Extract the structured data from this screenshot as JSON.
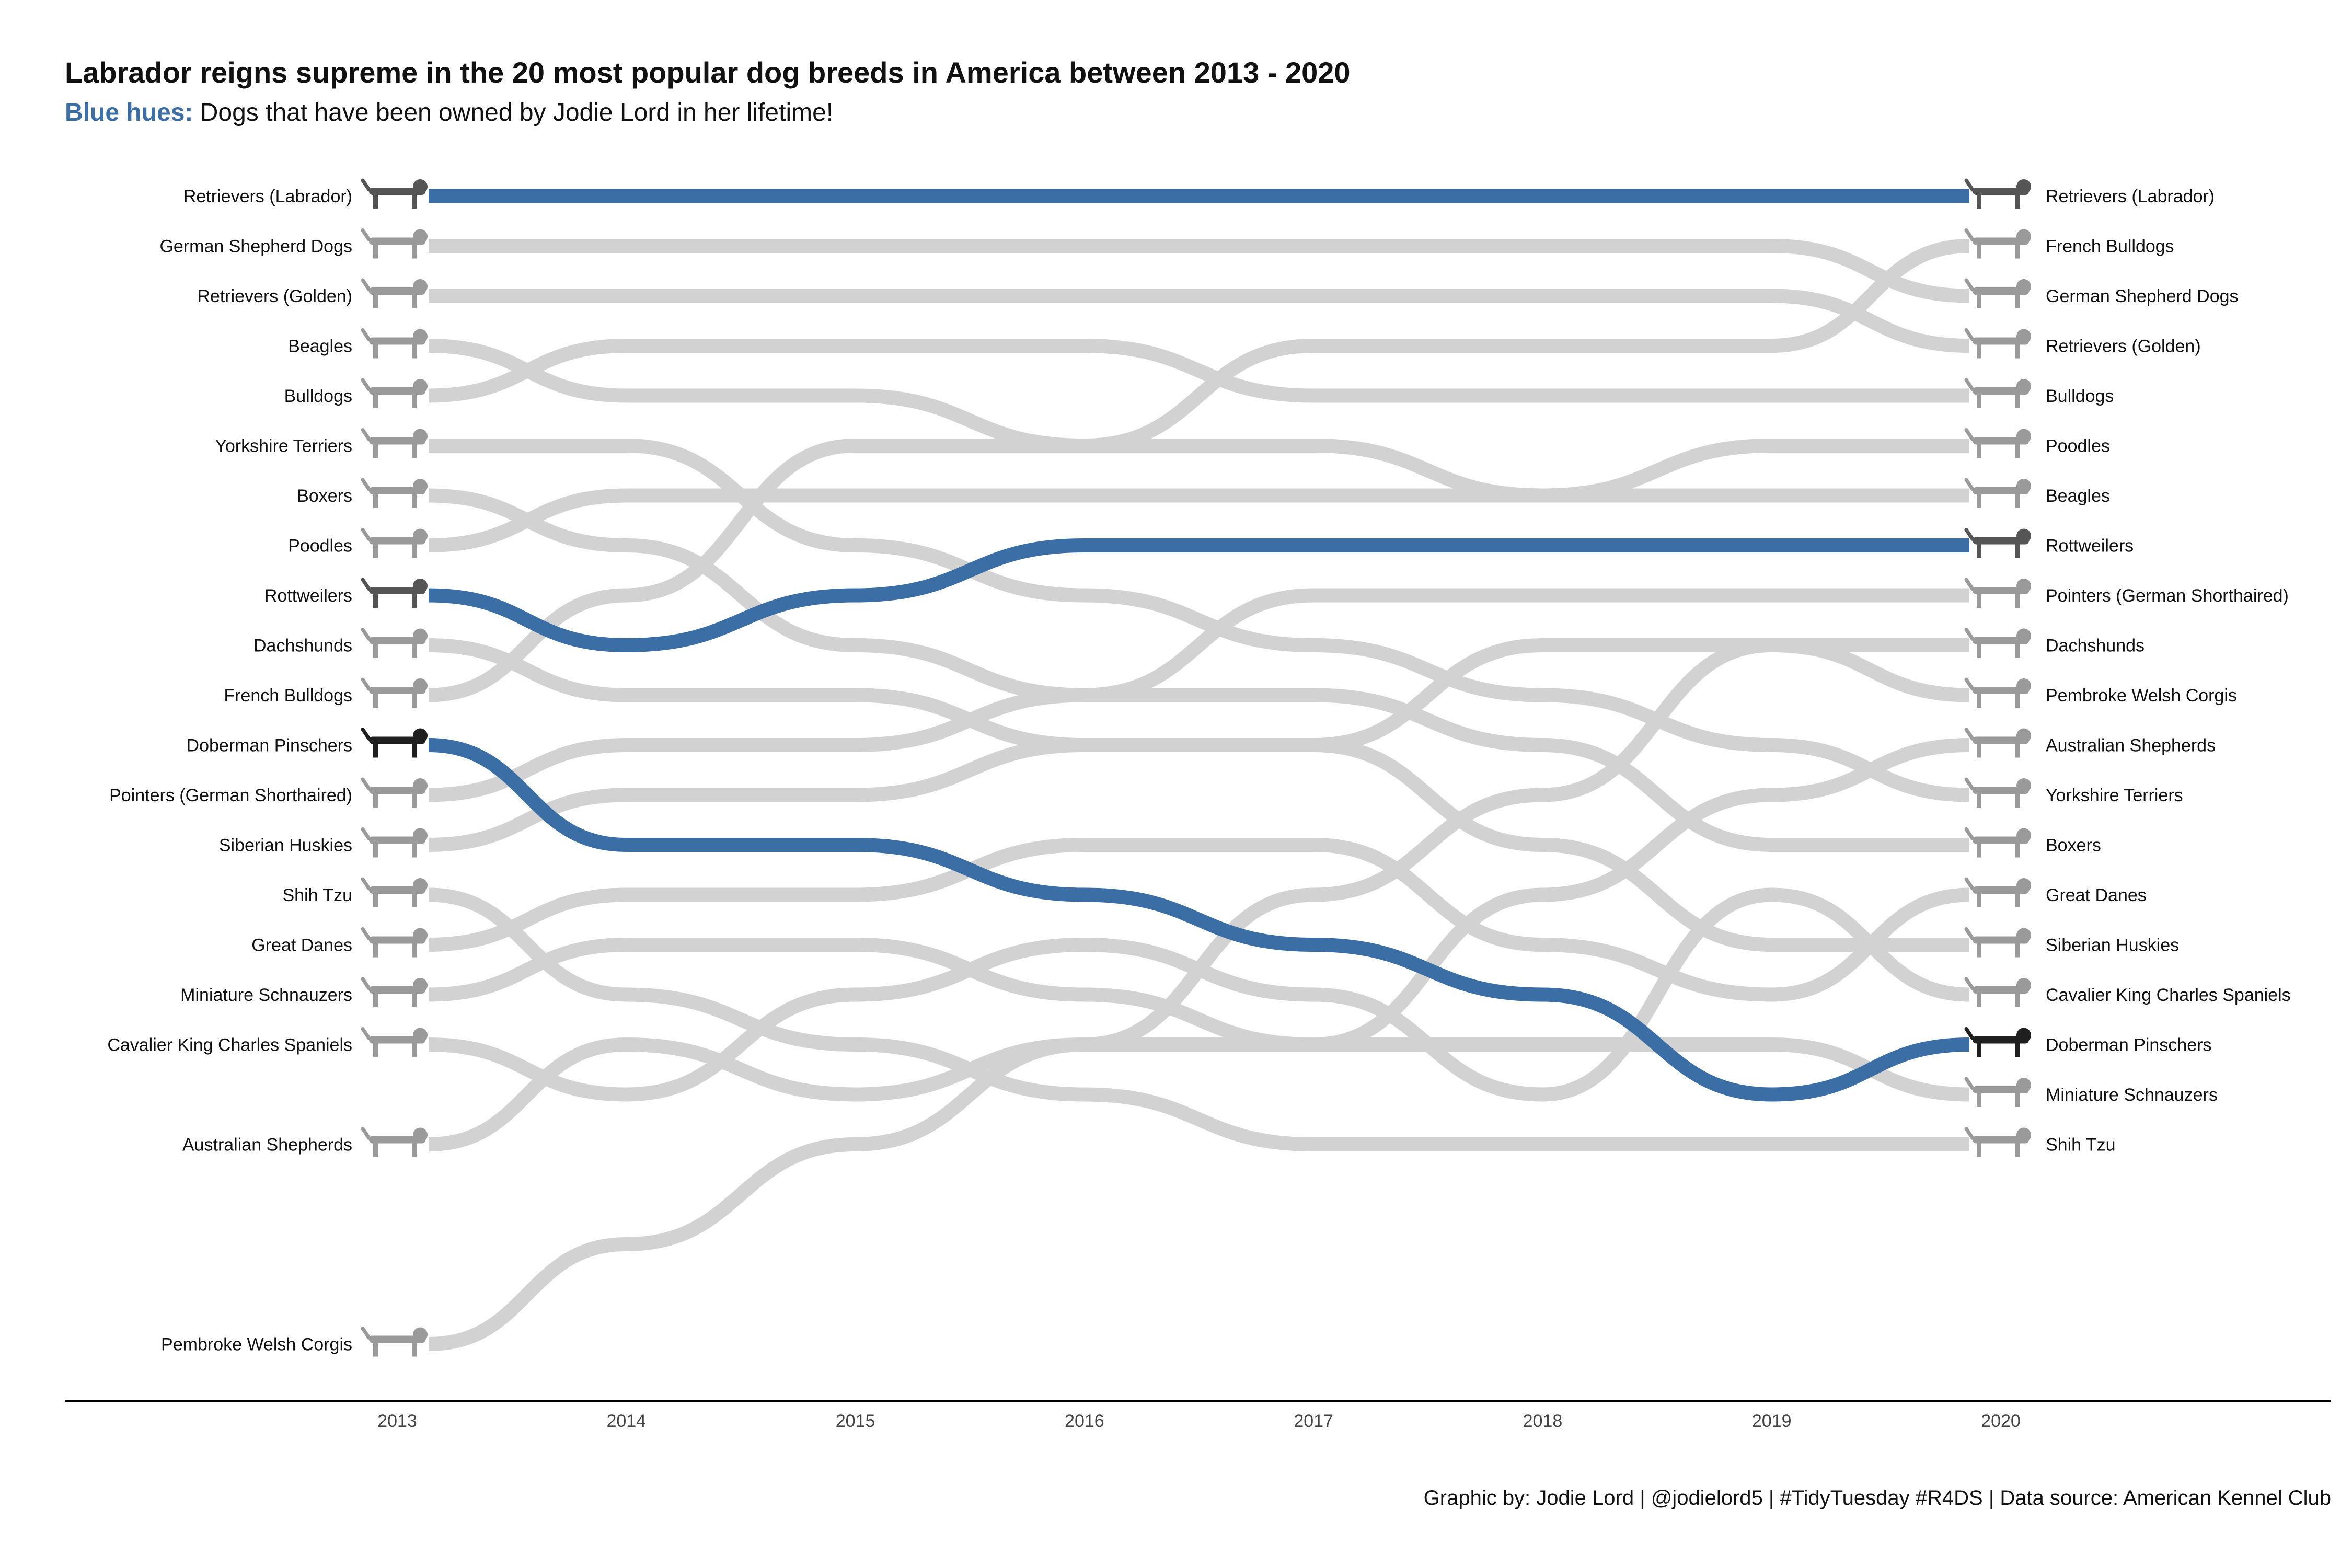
{
  "header": {
    "title": "Labrador reigns supreme in the 20 most popular dog breeds in America between 2013 - 2020",
    "subtitle_highlight": "Blue hues:",
    "subtitle_rest": " Dogs that have been owned by Jodie Lord in her lifetime!"
  },
  "caption": "Graphic by: Jodie Lord | @jodielord5 | #TidyTuesday #R4DS | Data source: American Kennel Club",
  "colors": {
    "highlight": "#3a6ea5",
    "other": "#d2d2d2",
    "axis": "#000000"
  },
  "chart_data": {
    "type": "line",
    "subtype": "bump chart (rank over time, rank 1 at top)",
    "title": "Labrador reigns supreme in the 20 most popular dog breeds in America between 2013 - 2020",
    "x": [
      2013,
      2014,
      2015,
      2016,
      2017,
      2018,
      2019,
      2020
    ],
    "y_reversed": true,
    "ylim": [
      1,
      24
    ],
    "grid": false,
    "legend": "none",
    "icons": "grayscale dog illustration beside each breed label at 2013 and 2020",
    "series": [
      {
        "name": "Retrievers (Labrador)",
        "highlight": true,
        "values": [
          1,
          1,
          1,
          1,
          1,
          1,
          1,
          1
        ]
      },
      {
        "name": "German Shepherd Dogs",
        "highlight": false,
        "values": [
          2,
          2,
          2,
          2,
          2,
          2,
          2,
          3
        ]
      },
      {
        "name": "Retrievers (Golden)",
        "highlight": false,
        "values": [
          3,
          3,
          3,
          3,
          3,
          3,
          3,
          4
        ]
      },
      {
        "name": "Beagles",
        "highlight": false,
        "values": [
          4,
          5,
          5,
          6,
          6,
          7,
          7,
          7
        ]
      },
      {
        "name": "Bulldogs",
        "highlight": false,
        "values": [
          5,
          4,
          4,
          4,
          5,
          5,
          5,
          5
        ]
      },
      {
        "name": "Yorkshire Terriers",
        "highlight": false,
        "values": [
          6,
          6,
          8,
          9,
          10,
          11,
          12,
          13
        ]
      },
      {
        "name": "Boxers",
        "highlight": false,
        "values": [
          7,
          8,
          10,
          11,
          11,
          12,
          14,
          14
        ]
      },
      {
        "name": "Poodles",
        "highlight": false,
        "values": [
          8,
          7,
          7,
          7,
          7,
          7,
          6,
          6
        ]
      },
      {
        "name": "Rottweilers",
        "highlight": true,
        "values": [
          9,
          10,
          9,
          8,
          8,
          8,
          8,
          8
        ]
      },
      {
        "name": "Dachshunds",
        "highlight": false,
        "values": [
          10,
          11,
          11,
          12,
          12,
          10,
          10,
          10
        ]
      },
      {
        "name": "French Bulldogs",
        "highlight": false,
        "values": [
          11,
          9,
          6,
          6,
          4,
          4,
          4,
          2
        ]
      },
      {
        "name": "Doberman Pinschers",
        "highlight": true,
        "values": [
          12,
          14,
          14,
          15,
          16,
          17,
          19,
          18
        ]
      },
      {
        "name": "Pointers (German Shorthaired)",
        "highlight": false,
        "values": [
          13,
          12,
          12,
          11,
          9,
          9,
          9,
          9
        ]
      },
      {
        "name": "Siberian Huskies",
        "highlight": false,
        "values": [
          14,
          13,
          13,
          12,
          12,
          14,
          16,
          16
        ]
      },
      {
        "name": "Shih Tzu",
        "highlight": false,
        "values": [
          15,
          17,
          18,
          19,
          20,
          20,
          20,
          20
        ]
      },
      {
        "name": "Great Danes",
        "highlight": false,
        "values": [
          16,
          15,
          15,
          14,
          14,
          16,
          17,
          15
        ]
      },
      {
        "name": "Miniature Schnauzers",
        "highlight": false,
        "values": [
          17,
          16,
          16,
          17,
          18,
          18,
          18,
          19
        ]
      },
      {
        "name": "Cavalier King Charles Spaniels",
        "highlight": false,
        "values": [
          18,
          19,
          17,
          16,
          17,
          19,
          15,
          17
        ]
      },
      {
        "name": "Australian Shepherds",
        "highlight": false,
        "values": [
          20,
          18,
          19,
          18,
          18,
          15,
          13,
          12
        ]
      },
      {
        "name": "Pembroke Welsh Corgis",
        "highlight": false,
        "values": [
          24,
          22,
          20,
          18,
          15,
          13,
          10,
          11
        ]
      }
    ]
  }
}
